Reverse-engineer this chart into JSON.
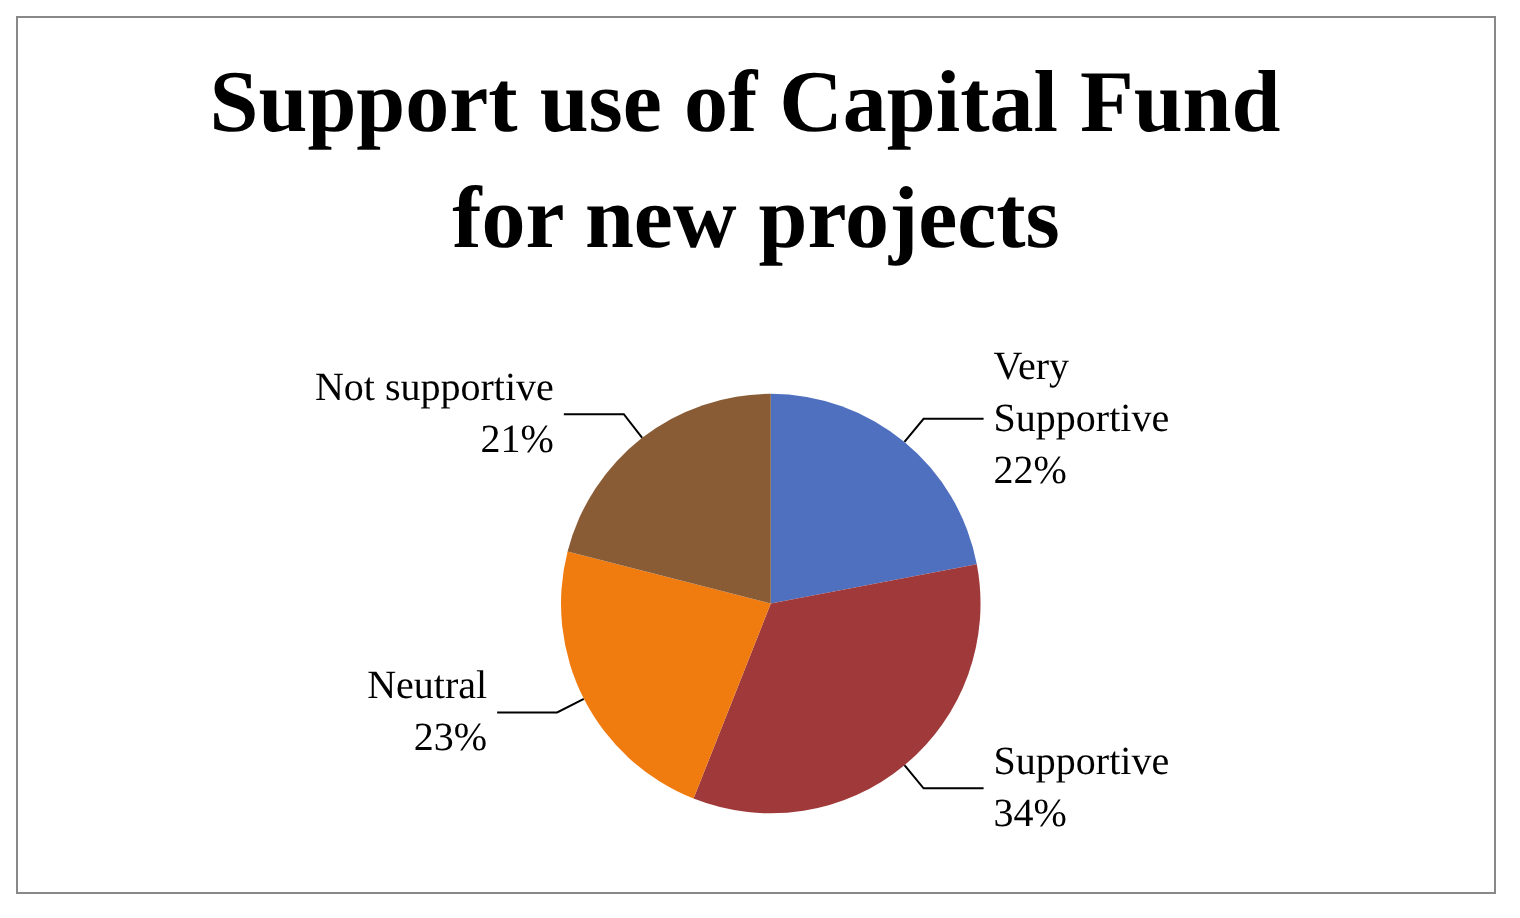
{
  "chart_data": {
    "type": "pie",
    "title": "Support use of Capital Fund for new projects",
    "categories": [
      "Very Supportive",
      "Supportive",
      "Neutral",
      "Not supportive"
    ],
    "values": [
      22,
      34,
      23,
      21
    ],
    "value_labels": [
      "22%",
      "34%",
      "23%",
      "21%"
    ],
    "colors": [
      "#4f6fbf",
      "#a0393a",
      "#f07c10",
      "#8a5c36"
    ],
    "legend": false
  }
}
